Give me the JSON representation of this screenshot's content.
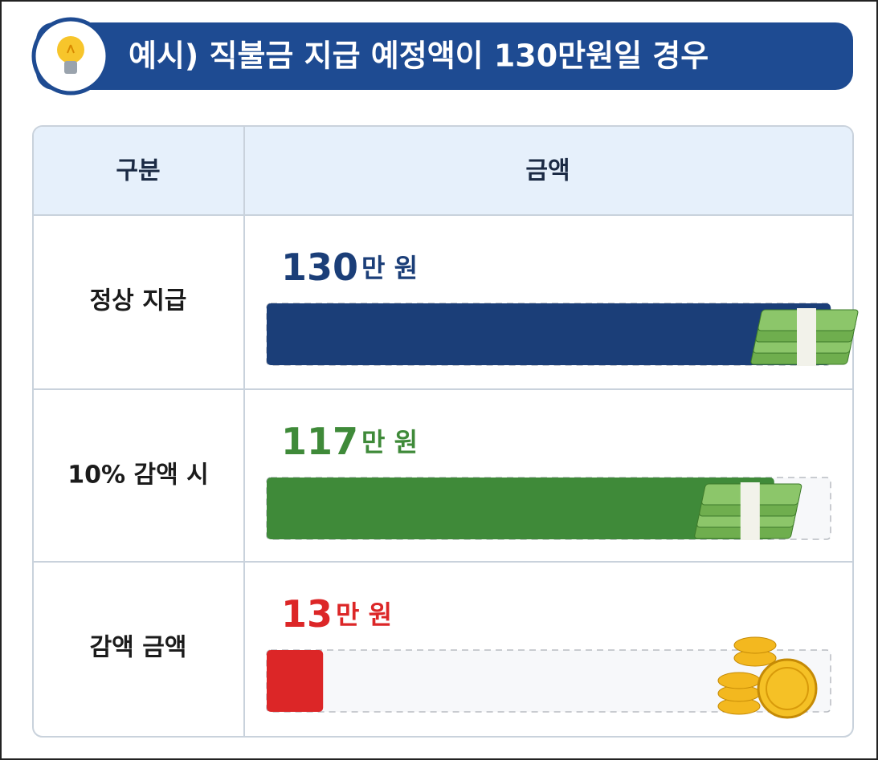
{
  "chart_data": {
    "type": "bar",
    "title": "예시) 직불금 지급 예정액이 130만원일 경우",
    "headers": [
      "구분",
      "금액"
    ],
    "categories": [
      "정상 지급",
      "10% 감액 시",
      "감액 금액"
    ],
    "series": [
      {
        "values": [
          130,
          117,
          13
        ],
        "colors": [
          "#1b3e78",
          "#3f8a39",
          "#dc2627"
        ]
      }
    ],
    "unit": "만 원",
    "xlim": [
      0,
      130
    ]
  }
}
